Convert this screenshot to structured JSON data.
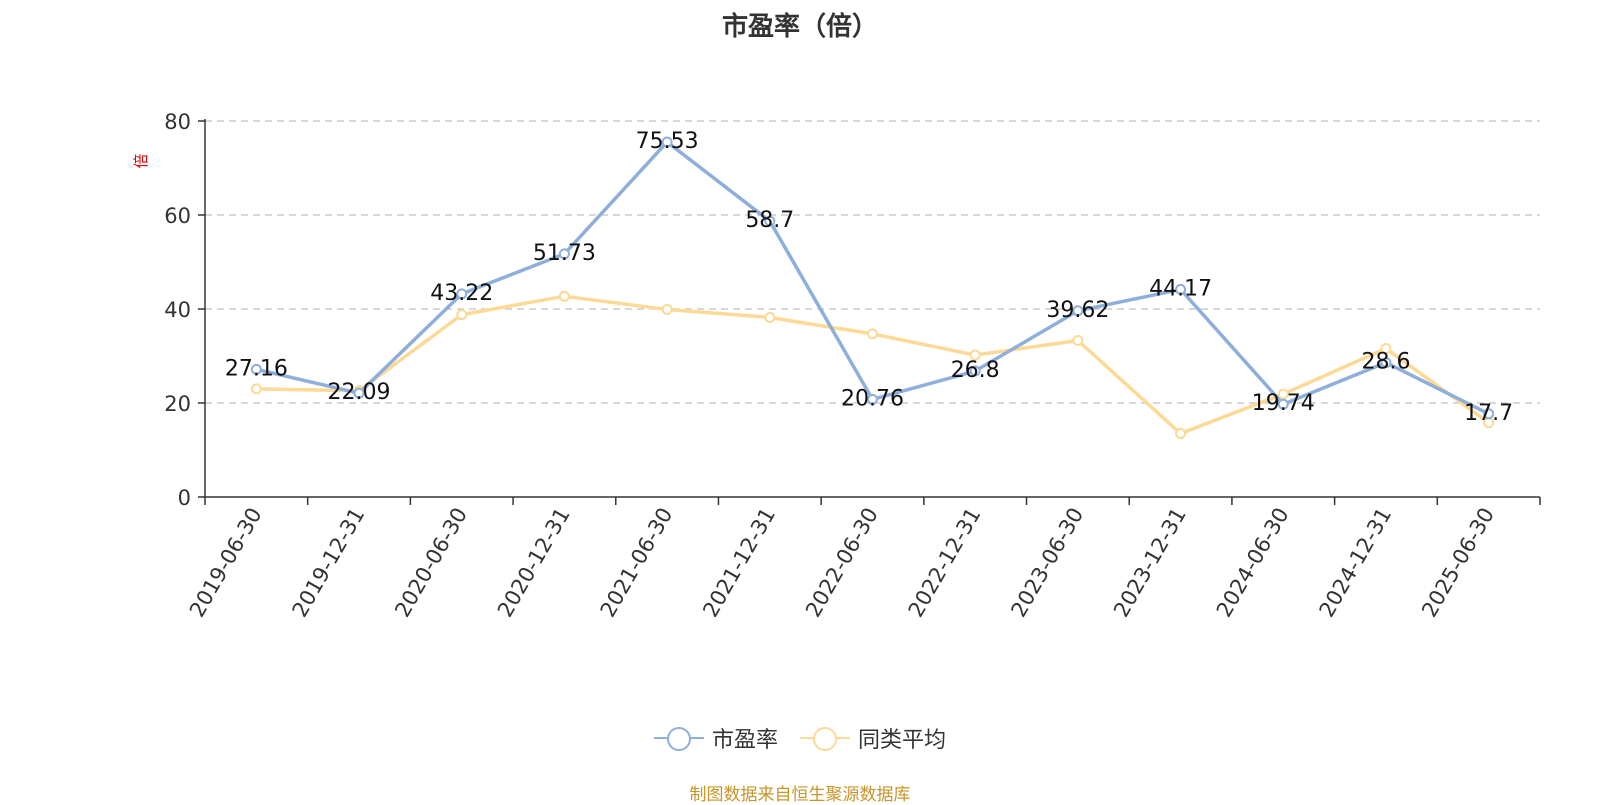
{
  "chart_data": {
    "type": "line",
    "title": "市盈率（倍）",
    "ylabel": "倍",
    "ylim": [
      0,
      80
    ],
    "yticks": [
      0,
      20,
      40,
      60,
      80
    ],
    "grid": true,
    "legend_position": "bottom-center",
    "categories": [
      "2019-06-30",
      "2019-12-31",
      "2020-06-30",
      "2020-12-31",
      "2021-06-30",
      "2021-12-31",
      "2022-06-30",
      "2022-12-31",
      "2023-06-30",
      "2023-12-31",
      "2024-06-30",
      "2024-12-31",
      "2025-06-30"
    ],
    "series": [
      {
        "name": "市盈率",
        "color": "#8eaedb",
        "show_labels": true,
        "values": [
          27.16,
          22.09,
          43.22,
          51.73,
          75.53,
          58.7,
          20.76,
          26.8,
          39.62,
          44.17,
          19.74,
          28.6,
          17.7
        ]
      },
      {
        "name": "同类平均",
        "color": "#fcd995",
        "show_labels": false,
        "values": [
          23.0,
          22.6,
          38.8,
          42.7,
          39.9,
          38.2,
          34.7,
          30.2,
          33.3,
          13.5,
          21.9,
          31.6,
          15.8
        ]
      }
    ]
  },
  "footer": {
    "source": "制图数据来自恒生聚源数据库"
  }
}
